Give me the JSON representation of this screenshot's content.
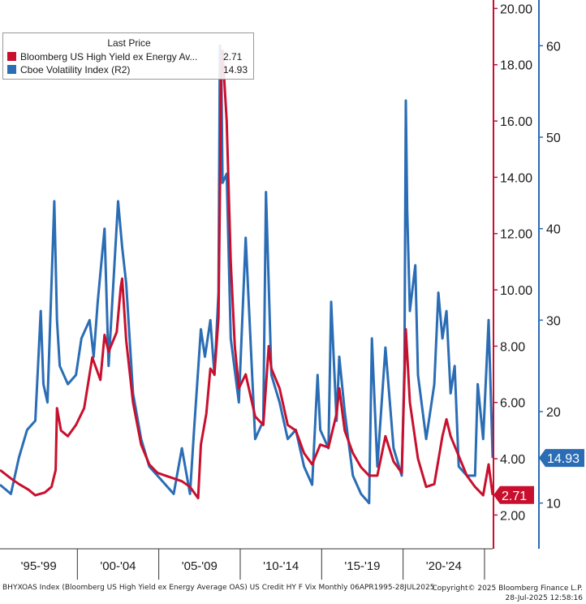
{
  "chart_data": {
    "type": "line",
    "title": "",
    "legend": {
      "header": "Last Price",
      "placement": "top-left",
      "entries": [
        {
          "name": "Bloomberg US High Yield ex Energy Av...",
          "value": "2.71"
        },
        {
          "name": "Cboe Volatility Index  (R2)",
          "value": "14.93"
        }
      ]
    },
    "x_ticks": [
      "'95-'99",
      "'00-'04",
      "'05-'09",
      "'10-'14",
      "'15-'19",
      "'20-'24"
    ],
    "xlim": [
      "1995-04",
      "2025-07"
    ],
    "left_axis": {
      "ticks": [
        "2.00",
        "4.00",
        "6.00",
        "8.00",
        "10.00",
        "12.00",
        "14.00",
        "16.00",
        "18.00",
        "20.00"
      ],
      "ylim": [
        0.8,
        20.3
      ],
      "color": "#c8102e"
    },
    "right_axis": {
      "ticks": [
        "10",
        "20",
        "30",
        "40",
        "50",
        "60"
      ],
      "ylim": [
        5,
        65
      ],
      "color": "#2a6db5"
    },
    "series": [
      {
        "name": "Bloomberg US High Yield ex Energy Av...",
        "axis": "left",
        "color": "#c8102e",
        "last_value": "2.71",
        "points": [
          [
            "1995-04",
            3.6
          ],
          [
            "1995-12",
            3.3
          ],
          [
            "1996-06",
            3.1
          ],
          [
            "1997-01",
            2.9
          ],
          [
            "1997-06",
            2.7
          ],
          [
            "1998-01",
            2.8
          ],
          [
            "1998-06",
            3.0
          ],
          [
            "1998-09",
            3.6
          ],
          [
            "1998-10",
            5.8
          ],
          [
            "1999-01",
            5.0
          ],
          [
            "1999-06",
            4.8
          ],
          [
            "1999-12",
            5.2
          ],
          [
            "2000-06",
            5.8
          ],
          [
            "2000-12",
            7.6
          ],
          [
            "2001-06",
            6.8
          ],
          [
            "2001-09",
            8.4
          ],
          [
            "2001-12",
            7.8
          ],
          [
            "2002-06",
            8.5
          ],
          [
            "2002-09",
            10.1
          ],
          [
            "2002-10",
            10.4
          ],
          [
            "2003-01",
            8.2
          ],
          [
            "2003-06",
            6.0
          ],
          [
            "2003-12",
            4.5
          ],
          [
            "2004-06",
            3.8
          ],
          [
            "2004-12",
            3.5
          ],
          [
            "2005-06",
            3.4
          ],
          [
            "2005-12",
            3.3
          ],
          [
            "2006-06",
            3.2
          ],
          [
            "2006-12",
            3.0
          ],
          [
            "2007-06",
            2.6
          ],
          [
            "2007-08",
            4.5
          ],
          [
            "2007-12",
            5.6
          ],
          [
            "2008-03",
            7.2
          ],
          [
            "2008-06",
            7.0
          ],
          [
            "2008-09",
            9.0
          ],
          [
            "2008-11",
            17.5
          ],
          [
            "2008-12",
            18.5
          ],
          [
            "2009-03",
            16.0
          ],
          [
            "2009-06",
            11.0
          ],
          [
            "2009-09",
            8.0
          ],
          [
            "2009-12",
            6.5
          ],
          [
            "2010-05",
            7.0
          ],
          [
            "2010-12",
            5.5
          ],
          [
            "2011-06",
            5.2
          ],
          [
            "2011-10",
            8.0
          ],
          [
            "2011-12",
            7.2
          ],
          [
            "2012-06",
            6.5
          ],
          [
            "2012-12",
            5.2
          ],
          [
            "2013-06",
            5.0
          ],
          [
            "2013-12",
            4.2
          ],
          [
            "2014-06",
            3.8
          ],
          [
            "2014-12",
            4.5
          ],
          [
            "2015-06",
            4.4
          ],
          [
            "2015-12",
            5.6
          ],
          [
            "2016-02",
            6.5
          ],
          [
            "2016-06",
            5.0
          ],
          [
            "2016-12",
            4.2
          ],
          [
            "2017-06",
            3.7
          ],
          [
            "2017-12",
            3.4
          ],
          [
            "2018-06",
            3.4
          ],
          [
            "2018-12",
            4.8
          ],
          [
            "2019-06",
            3.9
          ],
          [
            "2019-12",
            3.5
          ],
          [
            "2020-03",
            8.6
          ],
          [
            "2020-06",
            6.0
          ],
          [
            "2020-12",
            4.0
          ],
          [
            "2021-06",
            3.0
          ],
          [
            "2021-12",
            3.1
          ],
          [
            "2022-06",
            4.8
          ],
          [
            "2022-09",
            5.4
          ],
          [
            "2022-12",
            4.8
          ],
          [
            "2023-06",
            4.1
          ],
          [
            "2023-12",
            3.4
          ],
          [
            "2024-06",
            3.0
          ],
          [
            "2024-12",
            2.7
          ],
          [
            "2025-04",
            3.8
          ],
          [
            "2025-07",
            2.71
          ]
        ]
      },
      {
        "name": "Cboe Volatility Index  (R2)",
        "axis": "right",
        "color": "#2a6db5",
        "last_value": "14.93",
        "points": [
          [
            "1995-04",
            12
          ],
          [
            "1995-12",
            11
          ],
          [
            "1996-06",
            15
          ],
          [
            "1996-12",
            18
          ],
          [
            "1997-06",
            19
          ],
          [
            "1997-10",
            31
          ],
          [
            "1997-12",
            23
          ],
          [
            "1998-03",
            21
          ],
          [
            "1998-08",
            43
          ],
          [
            "1998-10",
            30
          ],
          [
            "1998-12",
            25
          ],
          [
            "1999-06",
            23
          ],
          [
            "1999-12",
            24
          ],
          [
            "2000-04",
            28
          ],
          [
            "2000-10",
            30
          ],
          [
            "2001-01",
            26
          ],
          [
            "2001-04",
            32
          ],
          [
            "2001-09",
            40
          ],
          [
            "2001-12",
            25
          ],
          [
            "2002-07",
            43
          ],
          [
            "2002-10",
            38
          ],
          [
            "2003-01",
            34
          ],
          [
            "2003-06",
            22
          ],
          [
            "2003-12",
            17
          ],
          [
            "2004-06",
            14
          ],
          [
            "2004-12",
            13
          ],
          [
            "2005-06",
            12
          ],
          [
            "2005-12",
            11
          ],
          [
            "2006-06",
            16
          ],
          [
            "2006-12",
            11
          ],
          [
            "2007-03",
            18
          ],
          [
            "2007-08",
            29
          ],
          [
            "2007-11",
            26
          ],
          [
            "2008-03",
            30
          ],
          [
            "2008-06",
            24
          ],
          [
            "2008-09",
            33
          ],
          [
            "2008-10",
            60
          ],
          [
            "2008-11",
            58
          ],
          [
            "2008-12",
            45
          ],
          [
            "2009-03",
            46
          ],
          [
            "2009-06",
            28
          ],
          [
            "2009-12",
            21
          ],
          [
            "2010-05",
            39
          ],
          [
            "2010-12",
            17
          ],
          [
            "2011-06",
            19
          ],
          [
            "2011-08",
            44
          ],
          [
            "2011-12",
            24
          ],
          [
            "2012-06",
            21
          ],
          [
            "2012-12",
            17
          ],
          [
            "2013-06",
            18
          ],
          [
            "2013-12",
            14
          ],
          [
            "2014-06",
            12
          ],
          [
            "2014-10",
            24
          ],
          [
            "2014-12",
            18
          ],
          [
            "2015-06",
            16
          ],
          [
            "2015-08",
            32
          ],
          [
            "2015-12",
            19
          ],
          [
            "2016-02",
            26
          ],
          [
            "2016-06",
            20
          ],
          [
            "2016-12",
            13
          ],
          [
            "2017-06",
            11
          ],
          [
            "2017-12",
            10
          ],
          [
            "2018-02",
            28
          ],
          [
            "2018-06",
            14
          ],
          [
            "2018-12",
            27
          ],
          [
            "2019-06",
            16
          ],
          [
            "2019-12",
            13
          ],
          [
            "2020-02",
            25
          ],
          [
            "2020-03",
            54
          ],
          [
            "2020-04",
            42
          ],
          [
            "2020-06",
            31
          ],
          [
            "2020-10",
            36
          ],
          [
            "2020-12",
            24
          ],
          [
            "2021-06",
            17
          ],
          [
            "2021-12",
            23
          ],
          [
            "2022-03",
            33
          ],
          [
            "2022-06",
            28
          ],
          [
            "2022-09",
            31
          ],
          [
            "2022-12",
            22
          ],
          [
            "2023-03",
            25
          ],
          [
            "2023-06",
            14
          ],
          [
            "2023-12",
            13
          ],
          [
            "2024-06",
            13
          ],
          [
            "2024-08",
            23
          ],
          [
            "2024-12",
            17
          ],
          [
            "2025-04",
            30
          ],
          [
            "2025-07",
            14.93
          ]
        ]
      }
    ]
  },
  "footer": {
    "source": "BHYXOAS Index (Bloomberg US High Yield ex Energy Average OAS) US Credit HY F Vix  Monthly 06APR1995-28JUL2025",
    "copyright": "Copyright© 2025 Bloomberg Finance L.P.",
    "timestamp": "28-Jul-2025 12:58:16"
  }
}
